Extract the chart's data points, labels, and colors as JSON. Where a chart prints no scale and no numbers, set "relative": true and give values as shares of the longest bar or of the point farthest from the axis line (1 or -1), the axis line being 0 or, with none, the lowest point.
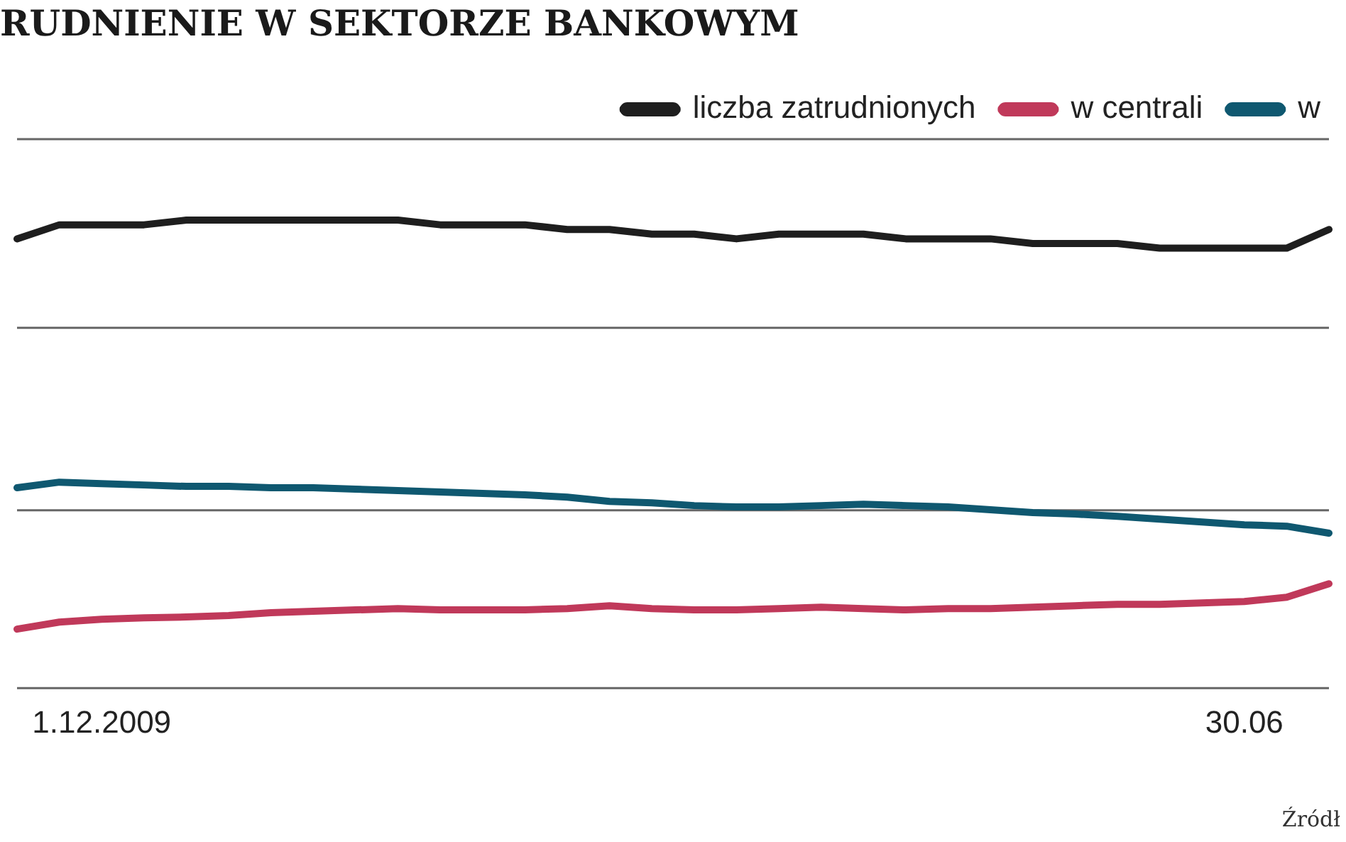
{
  "chart_data": {
    "type": "line",
    "title": "RUDNIENIE W SEKTORZE BANKOWYM",
    "relative": true,
    "ref_lines": [
      {
        "axis": "y",
        "value": 0.38,
        "color": "#666666"
      },
      {
        "axis": "y",
        "value": 0.77,
        "color": "#666666"
      }
    ],
    "legend": "top right",
    "marker": "none",
    "line_style": "solid",
    "categories": [
      null,
      null,
      "1.12.2009",
      null,
      null,
      null,
      null,
      null,
      null,
      null,
      null,
      null,
      null,
      null,
      null,
      null,
      null,
      null,
      null,
      null,
      null,
      null,
      null,
      null,
      null,
      null,
      null,
      null,
      null,
      "30.06",
      null,
      null
    ],
    "series": [
      {
        "name": "liczba zatrudnionych",
        "color": "#1e1e1e",
        "values": [
          0.96,
          0.99,
          0.99,
          0.99,
          1.0,
          1.0,
          1.0,
          1.0,
          1.0,
          1.0,
          0.99,
          0.99,
          0.99,
          0.98,
          0.98,
          0.97,
          0.97,
          0.96,
          0.97,
          0.97,
          0.97,
          0.96,
          0.96,
          0.96,
          0.95,
          0.95,
          0.95,
          0.94,
          0.94,
          0.94,
          0.94,
          0.98
        ]
      },
      {
        "name": "w centrali",
        "color": "#c0395a",
        "values": [
          0.126,
          0.141,
          0.147,
          0.15,
          0.152,
          0.155,
          0.161,
          0.164,
          0.167,
          0.17,
          0.167,
          0.167,
          0.167,
          0.17,
          0.176,
          0.17,
          0.167,
          0.167,
          0.17,
          0.173,
          0.17,
          0.167,
          0.17,
          0.17,
          0.173,
          0.176,
          0.179,
          0.179,
          0.182,
          0.185,
          0.194,
          0.223
        ]
      },
      {
        "name": "w",
        "color": "#0f5870",
        "values": [
          0.428,
          0.44,
          0.437,
          0.434,
          0.431,
          0.431,
          0.428,
          0.428,
          0.425,
          0.422,
          0.419,
          0.416,
          0.413,
          0.408,
          0.399,
          0.396,
          0.39,
          0.387,
          0.387,
          0.39,
          0.393,
          0.39,
          0.387,
          0.381,
          0.375,
          0.372,
          0.367,
          0.361,
          0.355,
          0.349,
          0.346,
          0.331
        ]
      }
    ],
    "annotations": [
      "Źródł"
    ]
  }
}
